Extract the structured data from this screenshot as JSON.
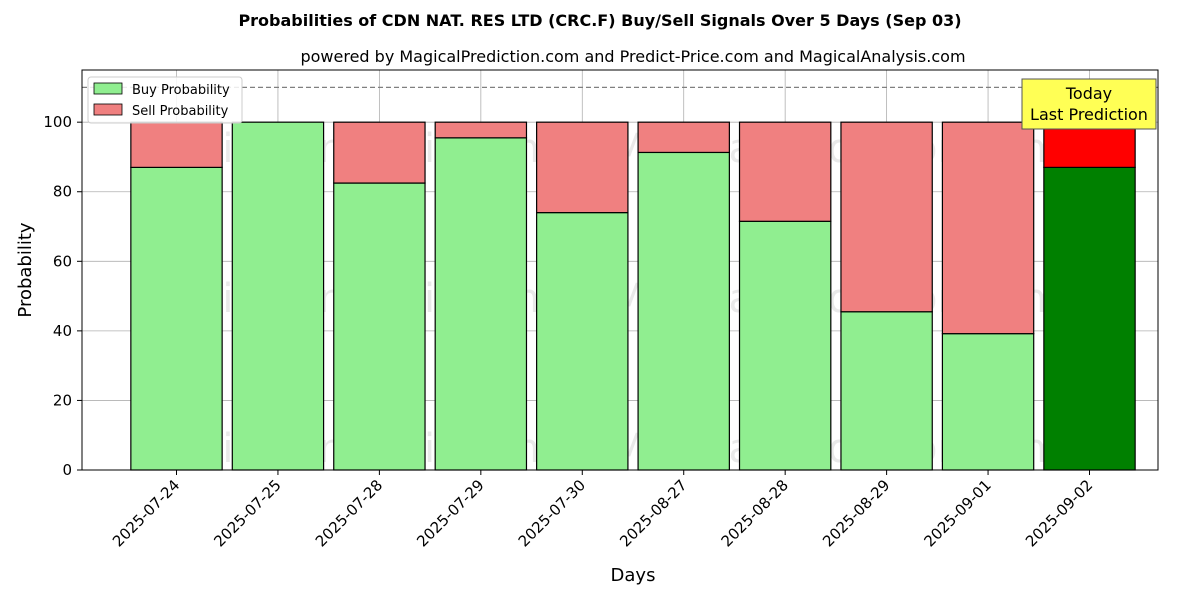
{
  "chart_data": {
    "type": "bar",
    "stacked": true,
    "title": "Probabilities of CDN NAT. RES LTD (CRC.F) Buy/Sell Signals Over 5 Days (Sep 03)",
    "subtitle": "powered by MagicalPrediction.com and Predict-Price.com and MagicalAnalysis.com",
    "xlabel": "Days",
    "ylabel": "Probability",
    "ylim": [
      0,
      115
    ],
    "yticks": [
      0,
      20,
      40,
      60,
      80,
      100
    ],
    "grid": true,
    "legend_position": "top-left",
    "categories": [
      "2025-07-24",
      "2025-07-25",
      "2025-07-28",
      "2025-07-29",
      "2025-07-30",
      "2025-08-27",
      "2025-08-28",
      "2025-08-29",
      "2025-09-01",
      "2025-09-02"
    ],
    "series": [
      {
        "name": "Buy Probability",
        "values": [
          87,
          100,
          82.5,
          95.5,
          74,
          91.3,
          71.5,
          45.5,
          39.2,
          87
        ],
        "color": "#90ee90",
        "highlight_color": "#008000"
      },
      {
        "name": "Sell Probability",
        "values": [
          13,
          0,
          17.5,
          4.5,
          26,
          8.7,
          28.5,
          54.5,
          60.8,
          13
        ],
        "color": "#f08080",
        "highlight_color": "#ff0000"
      }
    ],
    "reference_line": {
      "y": 110,
      "style": "dashed",
      "color": "#808080"
    },
    "annotation": {
      "line1": "Today",
      "line2": "Last Prediction",
      "category_index": 9,
      "background": "#ffff55"
    },
    "watermarks": [
      "MagicalAnalysis.com",
      "MagicalPrediction.com"
    ]
  }
}
